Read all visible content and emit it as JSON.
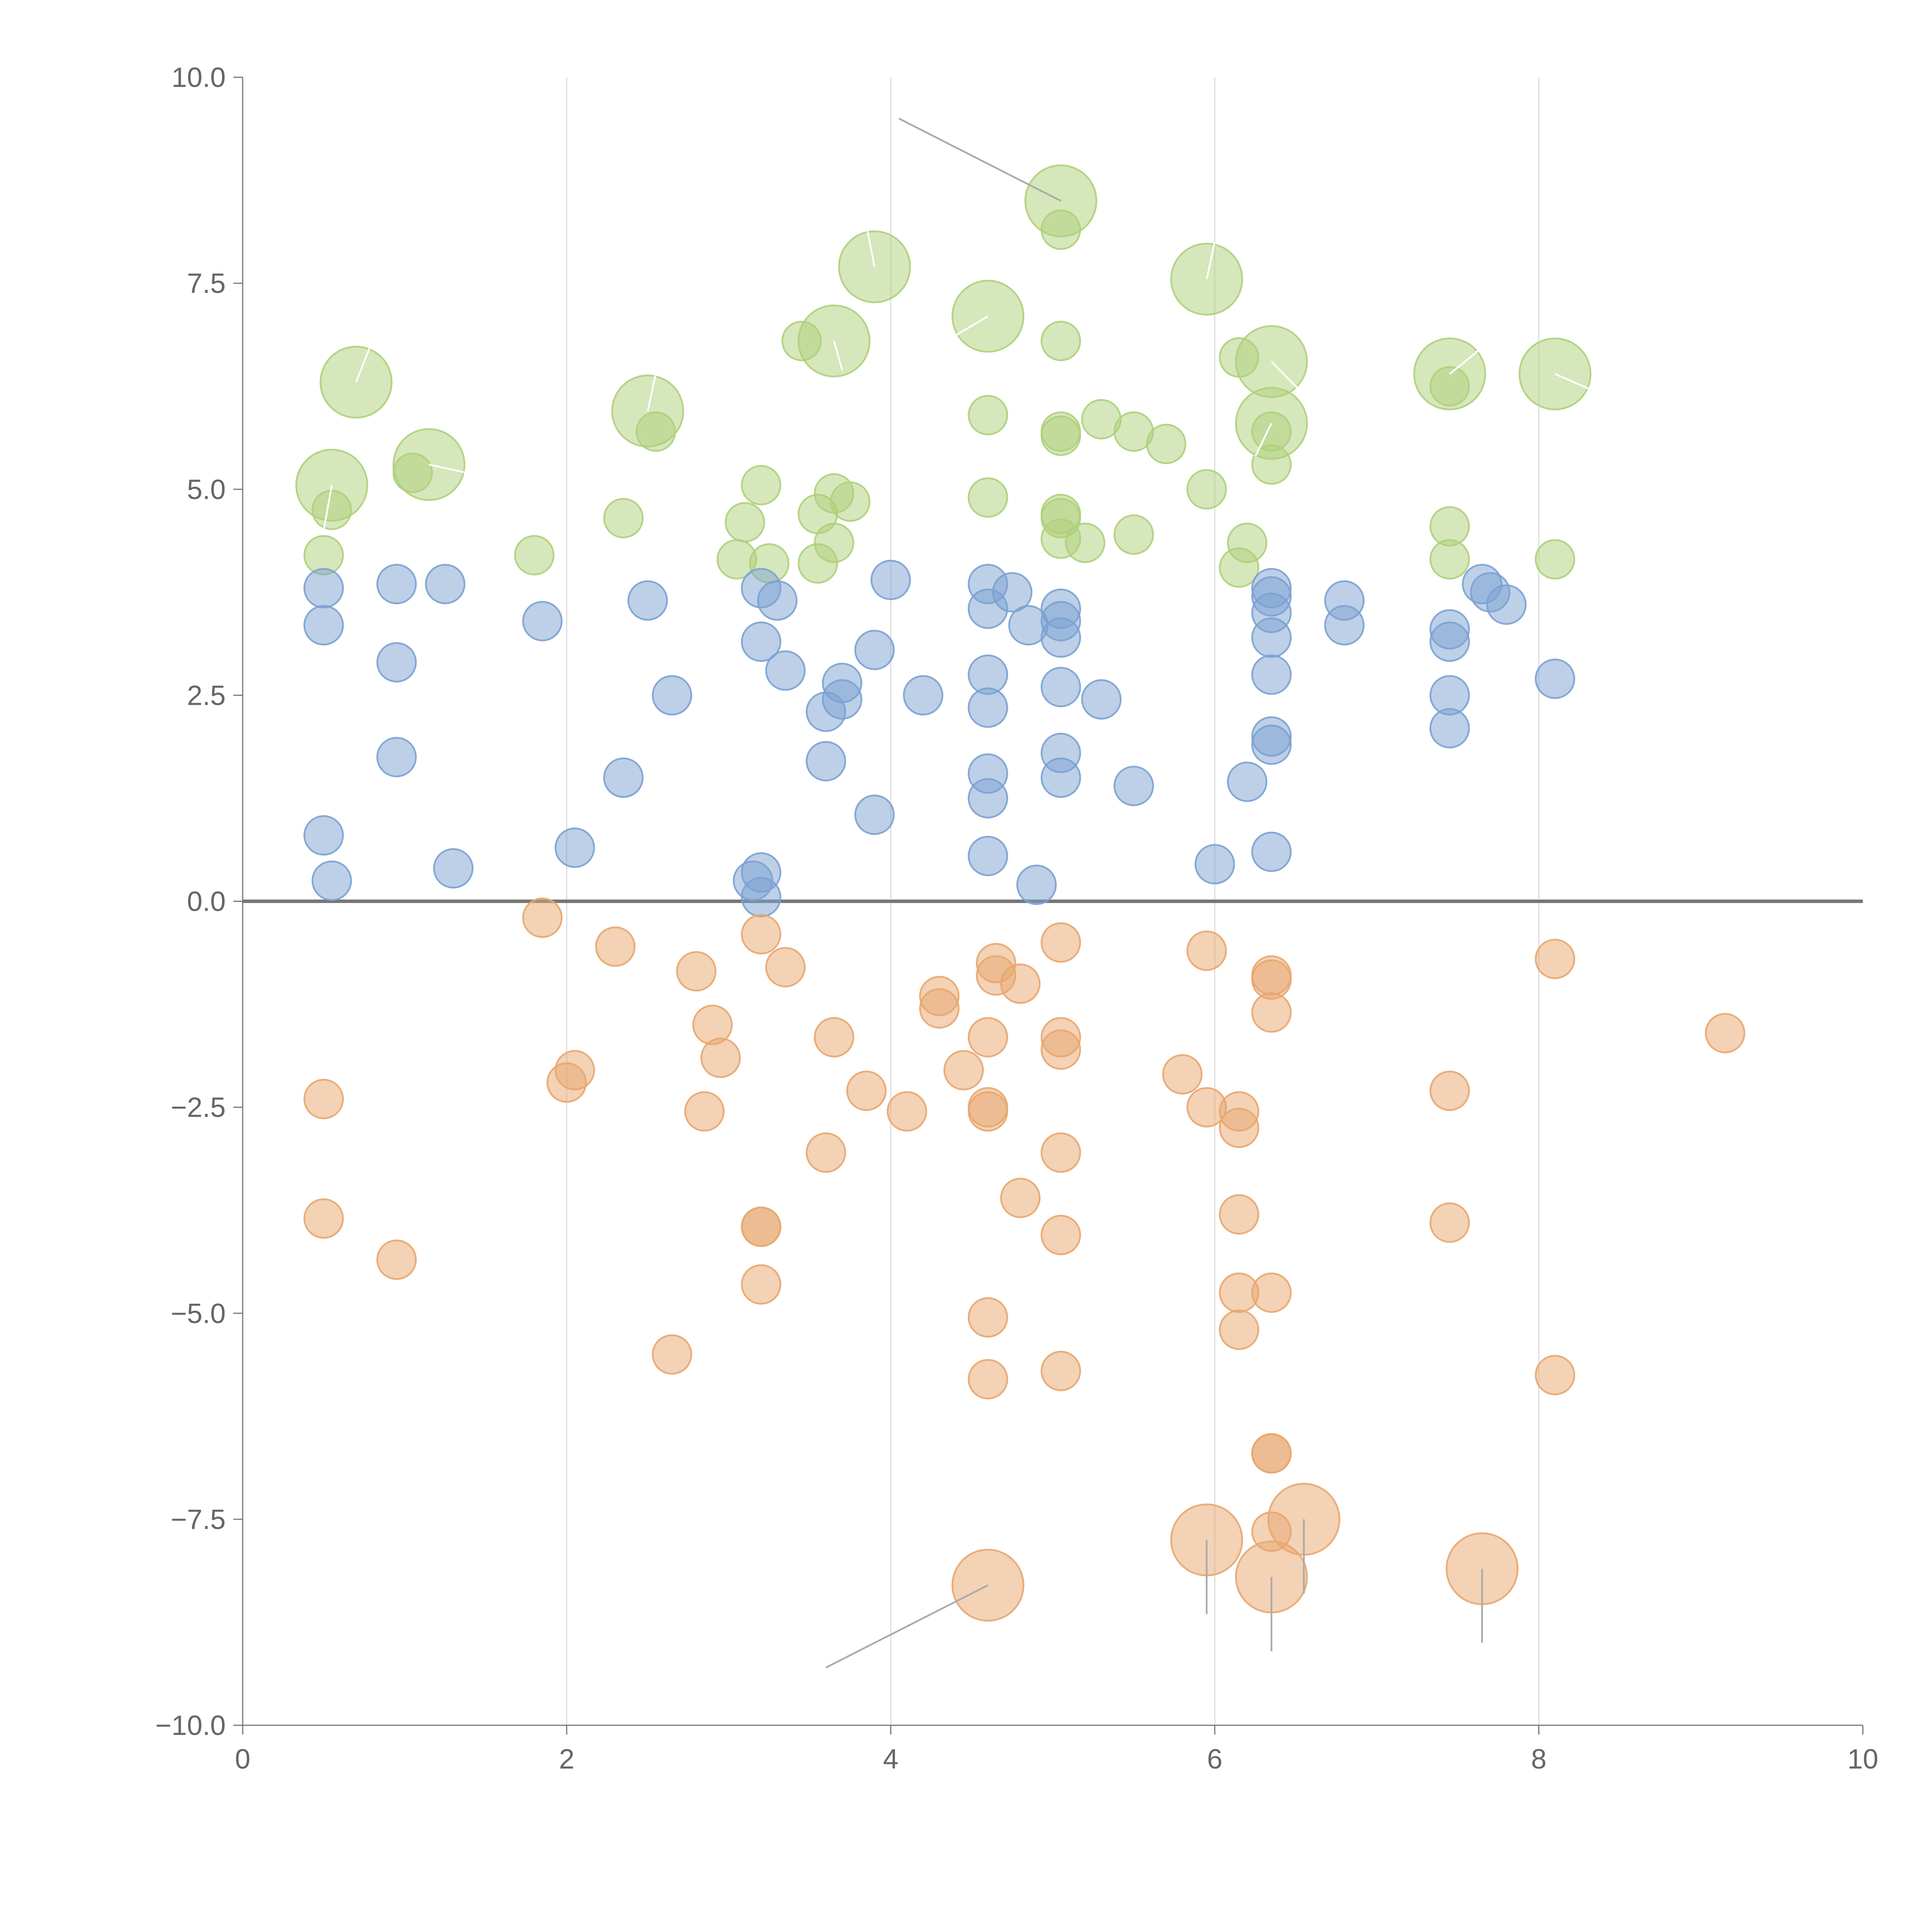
{
  "colors": {
    "positive": "#7ba1d2",
    "negative": "#e8a66e",
    "top": "#aed07a",
    "leader_dark": "#aaaaaa",
    "leader_light": "#ffffff"
  },
  "chart_data": {
    "type": "scatter",
    "title": "",
    "xlabel": "",
    "ylabel": "",
    "xlim": [
      0,
      10
    ],
    "ylim": [
      -10,
      10
    ],
    "xticks": [
      0,
      2,
      4,
      6,
      8,
      10
    ],
    "xtick_labels": [
      "0",
      "2",
      "4",
      "6",
      "8",
      "10"
    ],
    "yticks": [
      -10,
      -7.5,
      -5,
      -2.5,
      0,
      2.5,
      5,
      7.5,
      10
    ],
    "ytick_labels": [
      "−10.0",
      "−7.5",
      "−5.0",
      "−2.5",
      "0.0",
      "2.5",
      "5.0",
      "7.5",
      "10.0"
    ],
    "vertical_gridlines_at": [
      2,
      4,
      6,
      8
    ],
    "zero_line": true,
    "series": [
      {
        "name": "top",
        "color_key": "top",
        "points": [
          [
            0.7,
            6.3,
            2
          ],
          [
            0.55,
            5.05,
            2
          ],
          [
            1.15,
            5.3,
            2
          ],
          [
            2.5,
            5.95,
            2
          ],
          [
            3.65,
            6.8,
            2
          ],
          [
            3.9,
            7.7,
            2
          ],
          [
            4.6,
            7.1,
            2
          ],
          [
            5.05,
            8.5,
            2
          ],
          [
            5.95,
            7.55,
            2
          ],
          [
            6.35,
            6.55,
            2
          ],
          [
            6.35,
            5.8,
            2
          ],
          [
            7.45,
            6.4,
            2
          ],
          [
            8.1,
            6.4,
            2
          ],
          [
            0.55,
            4.75,
            1
          ],
          [
            0.5,
            4.2,
            1
          ],
          [
            1.05,
            5.2,
            1
          ],
          [
            1.8,
            4.2,
            1
          ],
          [
            2.35,
            4.65,
            1
          ],
          [
            2.55,
            5.7,
            1
          ],
          [
            3.05,
            4.15,
            1
          ],
          [
            3.1,
            4.6,
            1
          ],
          [
            3.2,
            5.05,
            1
          ],
          [
            3.25,
            4.1,
            1
          ],
          [
            3.45,
            6.8,
            1
          ],
          [
            3.55,
            4.7,
            1
          ],
          [
            3.55,
            4.1,
            1
          ],
          [
            3.65,
            4.95,
            1
          ],
          [
            3.65,
            4.35,
            1
          ],
          [
            3.75,
            4.85,
            1
          ],
          [
            4.6,
            5.9,
            1
          ],
          [
            4.6,
            4.9,
            1
          ],
          [
            5.05,
            8.15,
            1
          ],
          [
            5.05,
            6.8,
            1
          ],
          [
            5.05,
            5.65,
            1
          ],
          [
            5.05,
            5.7,
            1
          ],
          [
            5.05,
            4.7,
            1
          ],
          [
            5.05,
            4.65,
            1
          ],
          [
            5.05,
            4.4,
            1
          ],
          [
            5.2,
            4.35,
            1
          ],
          [
            5.3,
            5.85,
            1
          ],
          [
            5.5,
            5.7,
            1
          ],
          [
            5.5,
            4.45,
            1
          ],
          [
            5.7,
            5.55,
            1
          ],
          [
            5.95,
            5.0,
            1
          ],
          [
            6.15,
            6.6,
            1
          ],
          [
            6.2,
            4.35,
            1
          ],
          [
            6.15,
            4.05,
            1
          ],
          [
            6.35,
            5.7,
            1
          ],
          [
            6.35,
            5.3,
            1
          ],
          [
            7.45,
            6.25,
            1
          ],
          [
            7.45,
            4.55,
            1
          ],
          [
            7.45,
            4.15,
            1
          ],
          [
            8.1,
            4.15,
            1
          ]
        ]
      },
      {
        "name": "positive",
        "color_key": "positive",
        "points": [
          [
            0.5,
            3.8,
            1
          ],
          [
            0.5,
            3.35,
            1
          ],
          [
            0.5,
            0.8,
            1
          ],
          [
            0.55,
            0.25,
            1
          ],
          [
            0.95,
            3.85,
            1
          ],
          [
            0.95,
            2.9,
            1
          ],
          [
            0.95,
            1.75,
            1
          ],
          [
            1.25,
            3.85,
            1
          ],
          [
            1.3,
            0.4,
            1
          ],
          [
            1.85,
            3.4,
            1
          ],
          [
            2.05,
            0.65,
            1
          ],
          [
            2.35,
            1.5,
            1
          ],
          [
            2.5,
            3.65,
            1
          ],
          [
            2.65,
            2.5,
            1
          ],
          [
            3.2,
            3.8,
            1
          ],
          [
            3.2,
            3.15,
            1
          ],
          [
            3.15,
            0.25,
            1
          ],
          [
            3.2,
            0.35,
            1
          ],
          [
            3.2,
            0.05,
            1
          ],
          [
            3.3,
            3.65,
            1
          ],
          [
            3.35,
            2.8,
            1
          ],
          [
            3.6,
            2.3,
            1
          ],
          [
            3.6,
            1.7,
            1
          ],
          [
            3.7,
            2.65,
            1
          ],
          [
            3.7,
            2.45,
            1
          ],
          [
            3.9,
            3.05,
            1
          ],
          [
            3.9,
            1.05,
            1
          ],
          [
            4.0,
            3.9,
            1
          ],
          [
            4.2,
            2.5,
            1
          ],
          [
            4.6,
            3.85,
            1
          ],
          [
            4.6,
            3.55,
            1
          ],
          [
            4.6,
            2.75,
            1
          ],
          [
            4.6,
            2.35,
            1
          ],
          [
            4.6,
            1.55,
            1
          ],
          [
            4.6,
            1.25,
            1
          ],
          [
            4.6,
            0.55,
            1
          ],
          [
            4.75,
            3.75,
            1
          ],
          [
            4.85,
            3.35,
            1
          ],
          [
            4.9,
            0.2,
            1
          ],
          [
            5.05,
            3.55,
            1
          ],
          [
            5.05,
            3.4,
            1
          ],
          [
            5.05,
            3.2,
            1
          ],
          [
            5.05,
            2.6,
            1
          ],
          [
            5.05,
            1.8,
            1
          ],
          [
            5.05,
            1.5,
            1
          ],
          [
            5.3,
            2.45,
            1
          ],
          [
            5.5,
            1.4,
            1
          ],
          [
            6.0,
            0.45,
            1
          ],
          [
            6.2,
            1.45,
            1
          ],
          [
            6.35,
            3.8,
            1
          ],
          [
            6.35,
            3.7,
            1
          ],
          [
            6.35,
            3.5,
            1
          ],
          [
            6.35,
            3.2,
            1
          ],
          [
            6.35,
            2.75,
            1
          ],
          [
            6.35,
            2.0,
            1
          ],
          [
            6.35,
            1.9,
            1
          ],
          [
            6.35,
            0.6,
            1
          ],
          [
            6.8,
            3.65,
            1
          ],
          [
            6.8,
            3.35,
            1
          ],
          [
            7.45,
            3.3,
            1
          ],
          [
            7.45,
            3.15,
            1
          ],
          [
            7.45,
            2.5,
            1
          ],
          [
            7.45,
            2.1,
            1
          ],
          [
            7.65,
            3.85,
            1
          ],
          [
            7.7,
            3.75,
            1
          ],
          [
            7.8,
            3.6,
            1
          ],
          [
            8.1,
            2.7,
            1
          ]
        ]
      },
      {
        "name": "negative",
        "color_key": "negative",
        "points": [
          [
            0.5,
            -2.4,
            1
          ],
          [
            0.5,
            -3.85,
            1
          ],
          [
            0.95,
            -4.35,
            1
          ],
          [
            1.85,
            -0.2,
            1
          ],
          [
            2.0,
            -2.2,
            1
          ],
          [
            2.05,
            -2.05,
            1
          ],
          [
            2.3,
            -0.55,
            1
          ],
          [
            2.65,
            -5.5,
            1
          ],
          [
            2.8,
            -0.85,
            1
          ],
          [
            2.85,
            -2.55,
            1
          ],
          [
            2.9,
            -1.5,
            1
          ],
          [
            2.95,
            -1.9,
            1
          ],
          [
            3.2,
            -0.4,
            1
          ],
          [
            3.2,
            -3.95,
            1
          ],
          [
            3.2,
            -3.95,
            1
          ],
          [
            3.2,
            -4.65,
            1
          ],
          [
            3.35,
            -0.8,
            1
          ],
          [
            3.6,
            -3.05,
            1
          ],
          [
            3.65,
            -1.65,
            1
          ],
          [
            3.85,
            -2.3,
            1
          ],
          [
            4.1,
            -2.55,
            1
          ],
          [
            4.3,
            -1.15,
            1
          ],
          [
            4.3,
            -1.3,
            1
          ],
          [
            4.45,
            -2.05,
            1
          ],
          [
            4.6,
            -1.65,
            1
          ],
          [
            4.6,
            -2.5,
            1
          ],
          [
            4.6,
            -2.55,
            1
          ],
          [
            4.6,
            -5.05,
            1
          ],
          [
            4.6,
            -5.8,
            1
          ],
          [
            4.65,
            -0.75,
            1
          ],
          [
            4.65,
            -0.9,
            1
          ],
          [
            4.8,
            -1.0,
            1
          ],
          [
            4.8,
            -3.6,
            1
          ],
          [
            5.05,
            -0.5,
            1
          ],
          [
            5.05,
            -1.65,
            1
          ],
          [
            5.05,
            -1.8,
            1
          ],
          [
            5.05,
            -3.05,
            1
          ],
          [
            5.05,
            -4.05,
            1
          ],
          [
            5.05,
            -5.7,
            1
          ],
          [
            5.8,
            -2.1,
            1
          ],
          [
            5.95,
            -0.6,
            1
          ],
          [
            5.95,
            -2.5,
            1
          ],
          [
            6.15,
            -2.55,
            1
          ],
          [
            6.15,
            -2.75,
            1
          ],
          [
            6.15,
            -3.8,
            1
          ],
          [
            6.15,
            -4.75,
            1
          ],
          [
            6.15,
            -5.2,
            1
          ],
          [
            6.35,
            -0.9,
            1
          ],
          [
            6.35,
            -0.95,
            1
          ],
          [
            6.35,
            -1.35,
            1
          ],
          [
            6.35,
            -4.75,
            1
          ],
          [
            6.35,
            -6.7,
            1
          ],
          [
            6.35,
            -6.7,
            1
          ],
          [
            6.35,
            -7.65,
            1
          ],
          [
            7.45,
            -2.3,
            1
          ],
          [
            7.45,
            -3.9,
            1
          ],
          [
            8.1,
            -0.7,
            1
          ],
          [
            8.1,
            -5.75,
            1
          ],
          [
            9.15,
            -1.6,
            1
          ],
          [
            4.6,
            -8.3,
            2
          ],
          [
            5.95,
            -7.75,
            2
          ],
          [
            6.35,
            -8.2,
            2
          ],
          [
            6.55,
            -7.5,
            2
          ],
          [
            7.65,
            -8.1,
            2
          ]
        ]
      }
    ],
    "leader_lines": [
      {
        "from": [
          5.05,
          8.5
        ],
        "to": [
          4.05,
          9.5
        ],
        "color_key": "leader_dark"
      },
      {
        "from": [
          4.6,
          -8.3
        ],
        "to": [
          3.6,
          -9.3
        ],
        "color_key": "leader_dark"
      },
      {
        "from": [
          5.95,
          -7.75
        ],
        "to": [
          5.95,
          -8.65
        ],
        "color_key": "leader_dark"
      },
      {
        "from": [
          6.35,
          -8.2
        ],
        "to": [
          6.35,
          -9.1
        ],
        "color_key": "leader_dark"
      },
      {
        "from": [
          6.55,
          -7.5
        ],
        "to": [
          6.55,
          -8.4
        ],
        "color_key": "leader_dark"
      },
      {
        "from": [
          7.65,
          -8.1
        ],
        "to": [
          7.65,
          -9.0
        ],
        "color_key": "leader_dark"
      },
      {
        "from": [
          0.7,
          6.3
        ],
        "to": [
          0.8,
          6.8
        ],
        "color_key": "leader_light"
      },
      {
        "from": [
          0.55,
          5.05
        ],
        "to": [
          0.5,
          4.5
        ],
        "color_key": "leader_light"
      },
      {
        "from": [
          1.15,
          5.3
        ],
        "to": [
          1.5,
          5.15
        ],
        "color_key": "leader_light"
      },
      {
        "from": [
          2.5,
          5.95
        ],
        "to": [
          2.55,
          6.4
        ],
        "color_key": "leader_light"
      },
      {
        "from": [
          3.9,
          7.7
        ],
        "to": [
          3.85,
          8.2
        ],
        "color_key": "leader_light"
      },
      {
        "from": [
          3.65,
          6.8
        ],
        "to": [
          3.7,
          6.45
        ],
        "color_key": "leader_light"
      },
      {
        "from": [
          4.6,
          7.1
        ],
        "to": [
          4.3,
          6.75
        ],
        "color_key": "leader_light"
      },
      {
        "from": [
          5.95,
          7.55
        ],
        "to": [
          6.0,
          8.0
        ],
        "color_key": "leader_light"
      },
      {
        "from": [
          6.35,
          6.55
        ],
        "to": [
          6.6,
          6.05
        ],
        "color_key": "leader_light"
      },
      {
        "from": [
          6.35,
          5.8
        ],
        "to": [
          6.25,
          5.4
        ],
        "color_key": "leader_light"
      },
      {
        "from": [
          7.45,
          6.4
        ],
        "to": [
          7.7,
          6.8
        ],
        "color_key": "leader_light"
      },
      {
        "from": [
          8.1,
          6.4
        ],
        "to": [
          8.45,
          6.1
        ],
        "color_key": "leader_light"
      }
    ]
  }
}
